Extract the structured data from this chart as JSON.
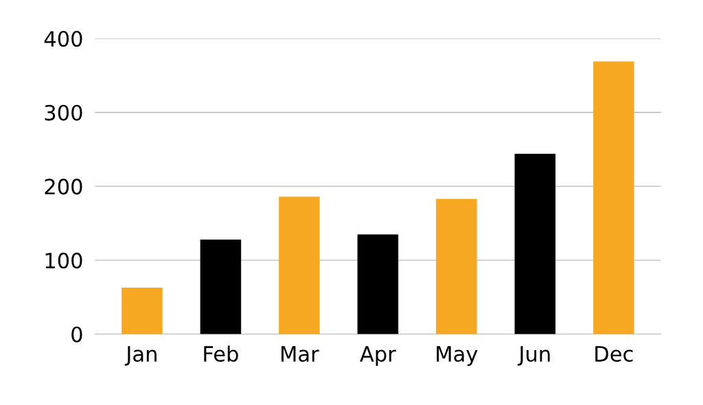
{
  "chart_data": {
    "type": "bar",
    "categories": [
      "Jan",
      "Feb",
      "Mar",
      "Apr",
      "May",
      "Jun",
      "Dec"
    ],
    "values": [
      63,
      128,
      186,
      135,
      183,
      244,
      369
    ],
    "colors": [
      "#f7a823",
      "#000000",
      "#f7a823",
      "#000000",
      "#f7a823",
      "#000000",
      "#f7a823"
    ],
    "ylim": [
      0,
      400
    ],
    "yticks": [
      0,
      100,
      200,
      300,
      400
    ],
    "grid": "y"
  }
}
